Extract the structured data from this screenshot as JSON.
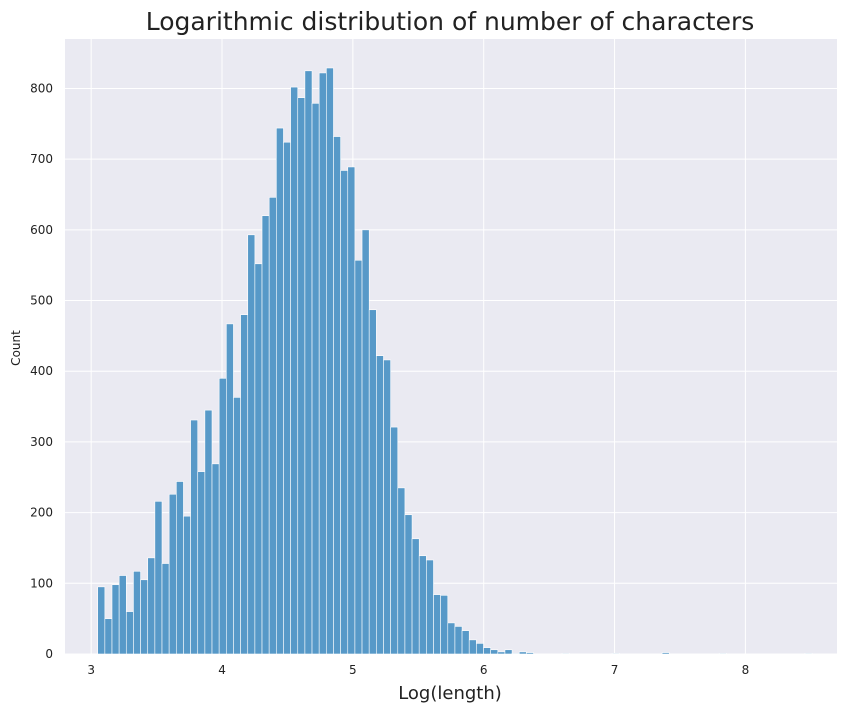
{
  "chart_data": {
    "type": "bar",
    "title": "Logarithmic distribution of number of characters",
    "xlabel": "Log(length)",
    "ylabel": "Count",
    "xlim": [
      2.8,
      8.7
    ],
    "ylim": [
      0,
      870
    ],
    "xticks": [
      3,
      4,
      5,
      6,
      7,
      8
    ],
    "yticks": [
      0,
      100,
      200,
      300,
      400,
      500,
      600,
      700,
      800
    ],
    "grid": true,
    "bin_start": 3.05,
    "bin_width": 0.0546,
    "values": [
      95,
      50,
      98,
      111,
      60,
      117,
      105,
      136,
      216,
      128,
      226,
      244,
      195,
      331,
      258,
      345,
      269,
      390,
      467,
      363,
      480,
      593,
      552,
      620,
      646,
      744,
      724,
      802,
      787,
      825,
      779,
      822,
      829,
      732,
      684,
      689,
      557,
      600,
      487,
      422,
      416,
      321,
      235,
      197,
      163,
      139,
      133,
      84,
      83,
      44,
      39,
      33,
      20,
      15,
      9,
      6,
      3,
      6,
      1,
      3,
      2,
      0,
      0,
      0,
      0,
      1,
      0,
      0,
      0,
      0,
      0,
      0,
      1,
      0,
      0,
      0,
      0,
      0,
      0,
      2,
      0,
      0,
      0,
      0,
      0,
      0,
      0,
      1,
      0,
      0,
      0,
      0,
      0,
      0,
      0,
      0,
      0,
      0,
      0,
      1
    ],
    "colors": {
      "bar_fill": "#5799c8",
      "bar_edge": "#ffffff",
      "plot_background": "#eaeaf2",
      "grid": "#ffffff"
    }
  }
}
